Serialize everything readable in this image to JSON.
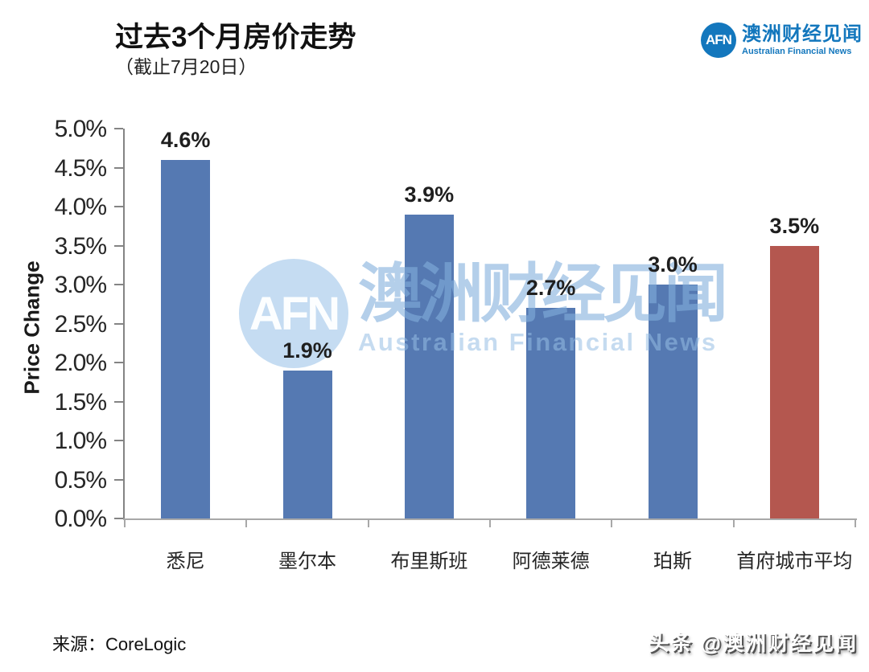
{
  "header": {
    "title": "过去3个月房价走势",
    "subtitle": "（截止7月20日）"
  },
  "logo": {
    "abbr": "AFN",
    "name_zh": "澳洲财经见闻",
    "name_en": "Australian Financial News",
    "color": "#1377BD"
  },
  "watermark": {
    "abbr": "AFN",
    "name_zh": "澳洲财经见闻",
    "name_en": "Australian Financial News"
  },
  "footer": {
    "source": "来源：CoreLogic",
    "platform_watermark": "头条 @澳洲财经见闻"
  },
  "chart_data": {
    "type": "bar",
    "title": "过去3个月房价走势",
    "subtitle": "（截止7月20日）",
    "categories": [
      "悉尼",
      "墨尔本",
      "布里斯班",
      "阿德莱德",
      "珀斯",
      "首府城市平均"
    ],
    "values": [
      4.6,
      1.9,
      3.9,
      2.7,
      3.0,
      3.5
    ],
    "labels": [
      "4.6%",
      "1.9%",
      "3.9%",
      "2.7%",
      "3.0%",
      "3.5%"
    ],
    "bar_colors": [
      "#5579B2",
      "#5579B2",
      "#5579B2",
      "#5579B2",
      "#5579B2",
      "#B4574F"
    ],
    "xlabel": "",
    "ylabel": "Price Change",
    "ylim": [
      0,
      5
    ],
    "ytick_step": 0.5,
    "ytick_labels": [
      "0.0%",
      "0.5%",
      "1.0%",
      "1.5%",
      "2.0%",
      "2.5%",
      "3.0%",
      "3.5%",
      "4.0%",
      "4.5%",
      "5.0%"
    ],
    "grid": false,
    "legend": "none",
    "source": "CoreLogic"
  }
}
